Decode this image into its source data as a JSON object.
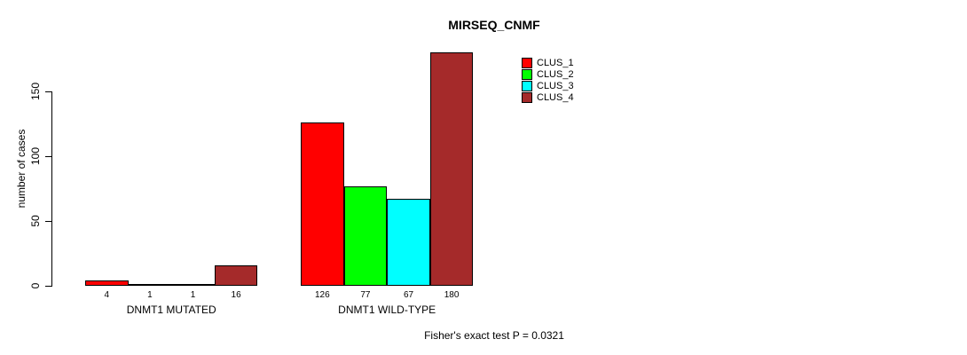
{
  "title": "MIRSEQ_CNMF",
  "ylabel": "number of cases",
  "footnote": "Fisher's exact test P = 0.0321",
  "colors": {
    "background": "#FFFFFF",
    "axis": "#000000",
    "clus_1": "#FF0000",
    "clus_2": "#00FF00",
    "clus_3": "#00FFFF",
    "clus_4": "#A52A2A"
  },
  "legend": {
    "items": [
      {
        "label": "CLUS_1",
        "color": "#FF0000"
      },
      {
        "label": "CLUS_2",
        "color": "#00FF00"
      },
      {
        "label": "CLUS_3",
        "color": "#00FFFF"
      },
      {
        "label": "CLUS_4",
        "color": "#A52A2A"
      }
    ]
  },
  "chart_data": {
    "type": "bar",
    "title": "MIRSEQ_CNMF",
    "xlabel": "",
    "ylabel": "number of cases",
    "categories": [
      "DNMT1 MUTATED",
      "DNMT1 WILD-TYPE"
    ],
    "series": [
      {
        "name": "CLUS_1",
        "color": "#FF0000",
        "values": [
          4,
          126
        ]
      },
      {
        "name": "CLUS_2",
        "color": "#00FF00",
        "values": [
          1,
          77
        ]
      },
      {
        "name": "CLUS_3",
        "color": "#00FFFF",
        "values": [
          1,
          67
        ]
      },
      {
        "name": "CLUS_4",
        "color": "#A52A2A",
        "values": [
          16,
          180
        ]
      }
    ],
    "bar_value_labels": [
      [
        4,
        1,
        1,
        16
      ],
      [
        126,
        77,
        67,
        180
      ]
    ],
    "yticks": [
      0,
      50,
      100,
      150
    ],
    "ylim": [
      0,
      180
    ],
    "grid": false,
    "legend_position": "top-right",
    "annotation": "Fisher's exact test P = 0.0321"
  }
}
